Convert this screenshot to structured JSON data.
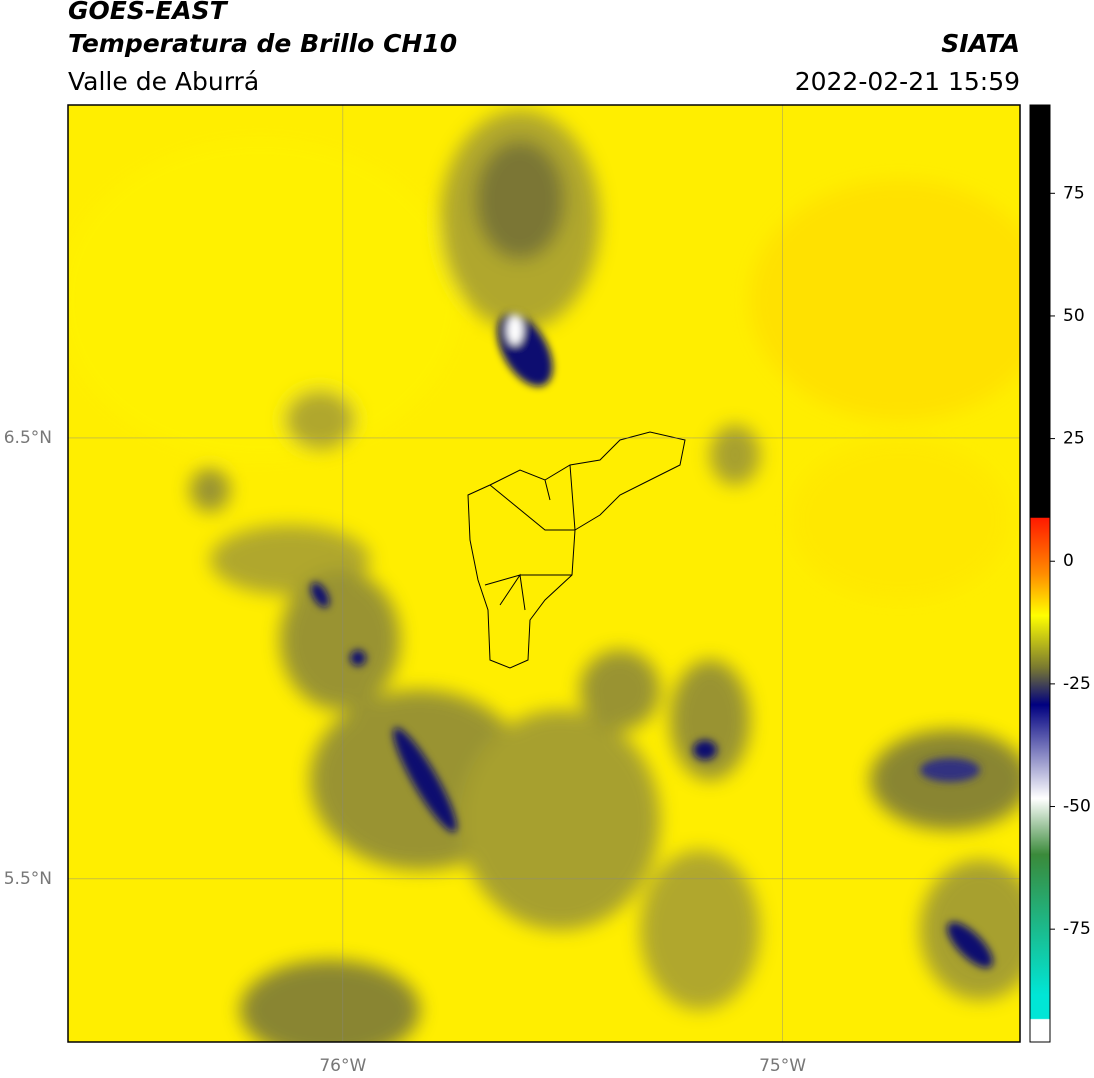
{
  "header": {
    "title": "GOES-EAST",
    "subtitle": "Temperatura de Brillo CH10",
    "region": "Valle de Aburrá",
    "source": "SIATA",
    "datetime": "2022-02-21 15:59"
  },
  "map": {
    "xlim": [
      -76.625,
      -74.46
    ],
    "ylim": [
      5.13,
      7.255
    ],
    "xticks": [
      {
        "value": -76,
        "label": "76°W"
      },
      {
        "value": -75,
        "label": "75°W"
      }
    ],
    "yticks": [
      {
        "value": 6.5,
        "label": "6.5°N"
      },
      {
        "value": 5.5,
        "label": "5.5°N"
      }
    ]
  },
  "colorbar": {
    "lim": [
      -98,
      93
    ],
    "ticks": [
      75,
      50,
      25,
      0,
      -25,
      -50,
      -75
    ]
  }
}
